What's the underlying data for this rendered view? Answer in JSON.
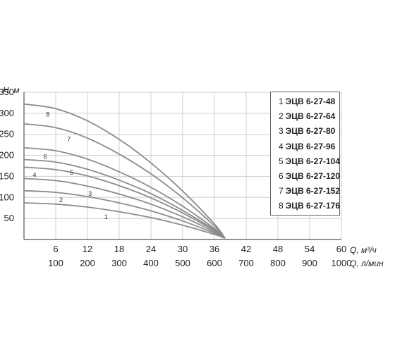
{
  "chart_data": {
    "type": "line",
    "y_axis_label": "H, м",
    "x_axis_label": "Q, м³/ч",
    "x2_axis_label": "Q, л/мин",
    "xlim": [
      0,
      60
    ],
    "ylim": [
      0,
      350
    ],
    "x_ticks": [
      "6",
      "12",
      "18",
      "24",
      "30",
      "36",
      "42",
      "48",
      "54",
      "60"
    ],
    "x2_ticks": [
      "100",
      "200",
      "300",
      "400",
      "500",
      "600",
      "700",
      "800",
      "900",
      "1000"
    ],
    "y_ticks": [
      "50",
      "100",
      "150",
      "200",
      "250",
      "300",
      "350"
    ],
    "grid": true,
    "legend_position": "top-right",
    "series": [
      {
        "id": "1",
        "name": "ЭЦВ 6-27-48",
        "x": [
          0,
          6,
          12,
          18,
          24,
          30,
          36,
          38
        ],
        "y": [
          87,
          84,
          77,
          66,
          52,
          34,
          12,
          3
        ]
      },
      {
        "id": "2",
        "name": "ЭЦВ 6-27-64",
        "x": [
          0,
          6,
          12,
          18,
          24,
          30,
          36,
          38
        ],
        "y": [
          116,
          112,
          102,
          87,
          68,
          44,
          15,
          3
        ]
      },
      {
        "id": "3",
        "name": "ЭЦВ 6-27-80",
        "x": [
          0,
          6,
          12,
          18,
          24,
          30,
          36,
          38
        ],
        "y": [
          145,
          140,
          127,
          108,
          84,
          54,
          18,
          3
        ]
      },
      {
        "id": "4",
        "name": "ЭЦВ 6-27-96",
        "x": [
          0,
          6,
          12,
          18,
          24,
          30,
          36,
          38
        ],
        "y": [
          172,
          166,
          151,
          128,
          99,
          63,
          21,
          3
        ]
      },
      {
        "id": "5",
        "name": "ЭЦВ 6-27-104",
        "x": [
          0,
          6,
          12,
          18,
          24,
          30,
          36,
          38
        ],
        "y": [
          190,
          184,
          167,
          141,
          109,
          69,
          23,
          3
        ]
      },
      {
        "id": "6",
        "name": "ЭЦВ 6-27-120",
        "x": [
          0,
          6,
          12,
          18,
          24,
          30,
          36,
          38
        ],
        "y": [
          218,
          211,
          191,
          161,
          124,
          79,
          26,
          3
        ]
      },
      {
        "id": "7",
        "name": "ЭЦВ 6-27-152",
        "x": [
          0,
          6,
          12,
          18,
          24,
          30,
          36,
          38
        ],
        "y": [
          275,
          266,
          241,
          203,
          156,
          99,
          32,
          3
        ]
      },
      {
        "id": "8",
        "name": "ЭЦВ 6-27-176",
        "x": [
          0,
          6,
          12,
          18,
          24,
          30,
          36,
          38
        ],
        "y": [
          322,
          311,
          282,
          238,
          182,
          115,
          37,
          3
        ]
      }
    ],
    "colors": {
      "curve": "#8c8c8c",
      "grid": "#cfcfcf",
      "axis": "#555555"
    }
  }
}
